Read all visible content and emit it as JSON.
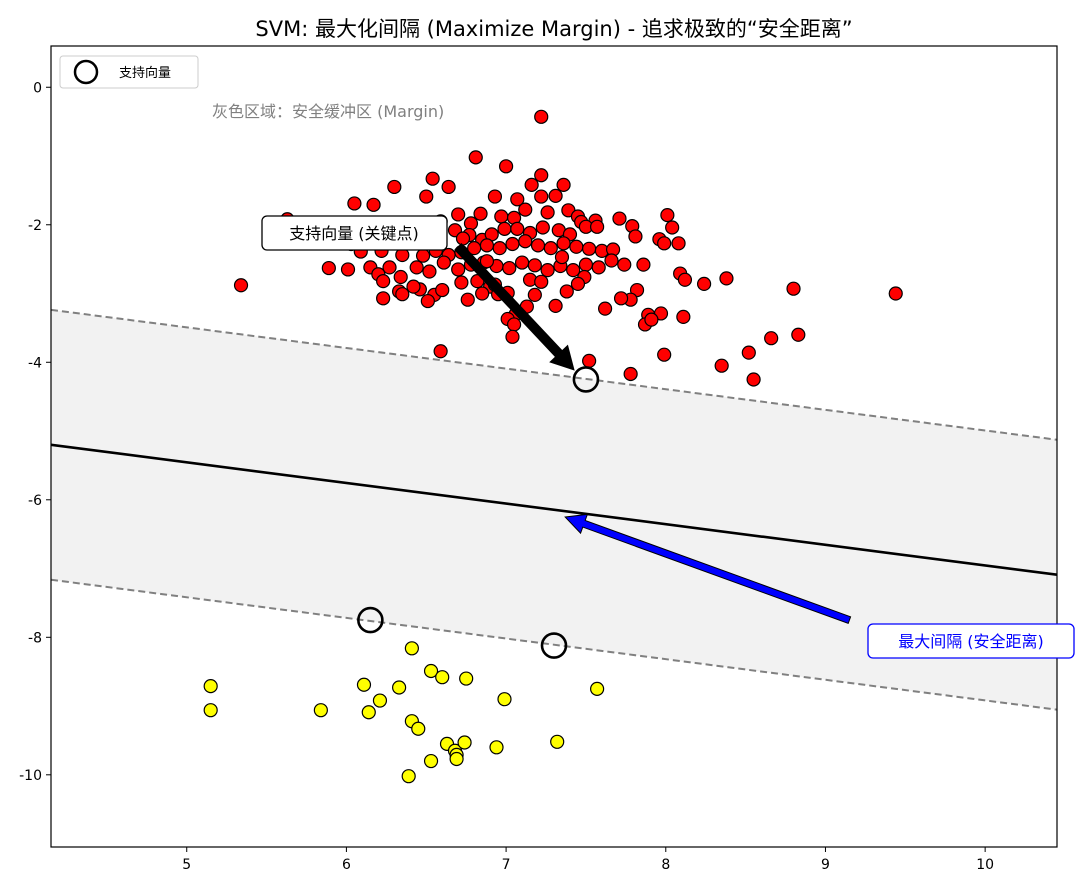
{
  "chart_data": {
    "type": "scatter",
    "title": "SVM: 最大化间隔 (Maximize Margin) - 追求极致的“安全距离”",
    "xlabel": "",
    "ylabel": "",
    "xlim": [
      4.15,
      10.45
    ],
    "ylim": [
      -11.05,
      0.6
    ],
    "xticks": [
      5,
      6,
      7,
      8,
      9,
      10
    ],
    "yticks": [
      0,
      -2,
      -4,
      -6,
      -8,
      -10
    ],
    "grid": false,
    "legend": {
      "position": "top-left",
      "entries": [
        "支持向量"
      ]
    },
    "decision_boundary": {
      "slope": -0.3,
      "intercept": -3.955
    },
    "margin_offset": 1.963,
    "colors": {
      "class_red": "#ff0000",
      "class_yellow": "#ffff00",
      "boundary": "#000000",
      "margin_line": "#808080",
      "margin_fill": "#f2f2f2",
      "support_arrow": "#000000",
      "margin_arrow": "#0000ff",
      "margin_label_text": "#808080"
    },
    "series": [
      {
        "name": "class_red",
        "points": [
          [
            7.22,
            -0.43
          ],
          [
            6.81,
            -1.02
          ],
          [
            7.0,
            -1.15
          ],
          [
            6.54,
            -1.33
          ],
          [
            6.64,
            -1.45
          ],
          [
            7.22,
            -1.28
          ],
          [
            7.16,
            -1.42
          ],
          [
            7.36,
            -1.42
          ],
          [
            6.3,
            -1.45
          ],
          [
            6.17,
            -1.71
          ],
          [
            6.5,
            -1.59
          ],
          [
            6.93,
            -1.59
          ],
          [
            7.07,
            -1.63
          ],
          [
            7.22,
            -1.59
          ],
          [
            7.31,
            -1.58
          ],
          [
            6.7,
            -1.85
          ],
          [
            6.78,
            -1.98
          ],
          [
            6.84,
            -1.84
          ],
          [
            6.97,
            -1.88
          ],
          [
            7.05,
            -1.9
          ],
          [
            7.12,
            -1.78
          ],
          [
            7.26,
            -1.82
          ],
          [
            7.39,
            -1.79
          ],
          [
            7.45,
            -1.88
          ],
          [
            7.47,
            -1.96
          ],
          [
            7.56,
            -1.94
          ],
          [
            6.59,
            -1.95
          ],
          [
            6.39,
            -1.98
          ],
          [
            6.33,
            -2.0
          ],
          [
            6.46,
            -2.12
          ],
          [
            6.57,
            -2.19
          ],
          [
            6.68,
            -2.08
          ],
          [
            6.77,
            -2.15
          ],
          [
            6.85,
            -2.22
          ],
          [
            6.91,
            -2.14
          ],
          [
            6.99,
            -2.06
          ],
          [
            7.07,
            -2.06
          ],
          [
            7.15,
            -2.12
          ],
          [
            7.23,
            -2.04
          ],
          [
            7.33,
            -2.08
          ],
          [
            7.4,
            -2.14
          ],
          [
            7.5,
            -2.03
          ],
          [
            7.57,
            -2.03
          ],
          [
            7.71,
            -1.91
          ],
          [
            7.79,
            -2.02
          ],
          [
            7.96,
            -2.21
          ],
          [
            7.99,
            -2.27
          ],
          [
            8.01,
            -1.86
          ],
          [
            8.04,
            -2.04
          ],
          [
            8.08,
            -2.27
          ],
          [
            6.03,
            -2.28
          ],
          [
            6.09,
            -2.39
          ],
          [
            6.22,
            -2.38
          ],
          [
            6.35,
            -2.44
          ],
          [
            6.48,
            -2.45
          ],
          [
            6.56,
            -2.38
          ],
          [
            6.64,
            -2.44
          ],
          [
            6.72,
            -2.4
          ],
          [
            6.8,
            -2.34
          ],
          [
            6.88,
            -2.3
          ],
          [
            6.96,
            -2.34
          ],
          [
            7.04,
            -2.28
          ],
          [
            7.12,
            -2.24
          ],
          [
            7.2,
            -2.3
          ],
          [
            7.28,
            -2.34
          ],
          [
            7.36,
            -2.27
          ],
          [
            7.44,
            -2.32
          ],
          [
            7.52,
            -2.35
          ],
          [
            7.6,
            -2.38
          ],
          [
            7.67,
            -2.36
          ],
          [
            6.15,
            -2.62
          ],
          [
            6.2,
            -2.72
          ],
          [
            6.27,
            -2.62
          ],
          [
            6.34,
            -2.76
          ],
          [
            6.44,
            -2.62
          ],
          [
            6.52,
            -2.68
          ],
          [
            6.61,
            -2.55
          ],
          [
            6.7,
            -2.65
          ],
          [
            6.78,
            -2.58
          ],
          [
            6.86,
            -2.55
          ],
          [
            6.94,
            -2.6
          ],
          [
            7.02,
            -2.63
          ],
          [
            7.1,
            -2.55
          ],
          [
            7.18,
            -2.59
          ],
          [
            7.26,
            -2.66
          ],
          [
            7.34,
            -2.6
          ],
          [
            7.42,
            -2.66
          ],
          [
            7.5,
            -2.58
          ],
          [
            7.58,
            -2.62
          ],
          [
            7.66,
            -2.52
          ],
          [
            7.74,
            -2.58
          ],
          [
            5.89,
            -2.63
          ],
          [
            6.01,
            -2.65
          ],
          [
            6.23,
            -2.82
          ],
          [
            6.33,
            -2.97
          ],
          [
            6.46,
            -2.94
          ],
          [
            6.55,
            -3.02
          ],
          [
            6.72,
            -2.84
          ],
          [
            6.82,
            -2.82
          ],
          [
            6.9,
            -2.9
          ],
          [
            7.01,
            -2.99
          ],
          [
            7.15,
            -2.8
          ],
          [
            7.22,
            -2.83
          ],
          [
            7.38,
            -2.97
          ],
          [
            7.49,
            -2.76
          ],
          [
            6.23,
            -3.07
          ],
          [
            6.35,
            -3.01
          ],
          [
            6.51,
            -3.11
          ],
          [
            6.76,
            -3.09
          ],
          [
            6.85,
            -3.0
          ],
          [
            6.95,
            -3.01
          ],
          [
            7.06,
            -3.3
          ],
          [
            7.18,
            -3.02
          ],
          [
            7.31,
            -3.18
          ],
          [
            7.45,
            -2.86
          ],
          [
            5.34,
            -2.88
          ],
          [
            6.42,
            -2.9
          ],
          [
            6.6,
            -2.95
          ],
          [
            6.88,
            -2.53
          ],
          [
            6.93,
            -2.87
          ],
          [
            7.13,
            -3.19
          ],
          [
            7.81,
            -2.17
          ],
          [
            7.86,
            -2.58
          ],
          [
            8.09,
            -2.71
          ],
          [
            8.12,
            -2.8
          ],
          [
            8.24,
            -2.86
          ],
          [
            8.38,
            -2.78
          ],
          [
            8.8,
            -2.93
          ],
          [
            9.44,
            -3.0
          ],
          [
            7.82,
            -2.95
          ],
          [
            7.78,
            -3.09
          ],
          [
            7.72,
            -3.07
          ],
          [
            7.97,
            -3.29
          ],
          [
            8.11,
            -3.34
          ],
          [
            7.89,
            -3.31
          ],
          [
            7.87,
            -3.45
          ],
          [
            7.62,
            -3.22
          ],
          [
            7.01,
            -3.37
          ],
          [
            7.05,
            -3.45
          ],
          [
            7.04,
            -3.63
          ],
          [
            8.66,
            -3.65
          ],
          [
            8.83,
            -3.6
          ],
          [
            8.52,
            -3.86
          ],
          [
            8.35,
            -4.05
          ],
          [
            8.55,
            -4.25
          ],
          [
            7.99,
            -3.89
          ],
          [
            7.78,
            -4.17
          ],
          [
            7.52,
            -3.98
          ],
          [
            6.59,
            -3.84
          ],
          [
            6.05,
            -1.69
          ],
          [
            5.63,
            -1.92
          ],
          [
            7.91,
            -3.38
          ],
          [
            7.35,
            -2.47
          ],
          [
            6.73,
            -2.2
          ]
        ]
      },
      {
        "name": "class_yellow",
        "points": [
          [
            5.15,
            -8.71
          ],
          [
            5.15,
            -9.06
          ],
          [
            5.84,
            -9.06
          ],
          [
            6.11,
            -8.69
          ],
          [
            6.14,
            -9.09
          ],
          [
            6.21,
            -8.92
          ],
          [
            6.33,
            -8.73
          ],
          [
            6.41,
            -9.22
          ],
          [
            6.45,
            -9.33
          ],
          [
            6.41,
            -8.16
          ],
          [
            6.53,
            -8.49
          ],
          [
            6.6,
            -8.58
          ],
          [
            6.63,
            -9.55
          ],
          [
            6.68,
            -9.65
          ],
          [
            6.69,
            -9.71
          ],
          [
            6.69,
            -9.77
          ],
          [
            6.74,
            -9.53
          ],
          [
            6.75,
            -8.6
          ],
          [
            6.94,
            -9.6
          ],
          [
            6.99,
            -8.9
          ],
          [
            7.32,
            -9.52
          ],
          [
            7.57,
            -8.75
          ],
          [
            6.39,
            -10.02
          ],
          [
            6.53,
            -9.8
          ]
        ]
      }
    ],
    "support_vectors": [
      [
        7.5,
        -4.25
      ],
      [
        6.15,
        -7.75
      ],
      [
        7.3,
        -8.12
      ]
    ],
    "annotations": {
      "support_vector_label": "支持向量 (关键点)",
      "margin_label": "最大间隔 (安全距离)",
      "region_label": "灰色区域：安全缓冲区 (Margin)"
    },
    "arrows": {
      "support": {
        "from": [
          6.7,
          -2.32
        ],
        "to": [
          7.5,
          -4.25
        ]
      },
      "margin": {
        "from": [
          9.15,
          -7.75
        ],
        "to": [
          7.37,
          -6.25
        ]
      }
    }
  }
}
